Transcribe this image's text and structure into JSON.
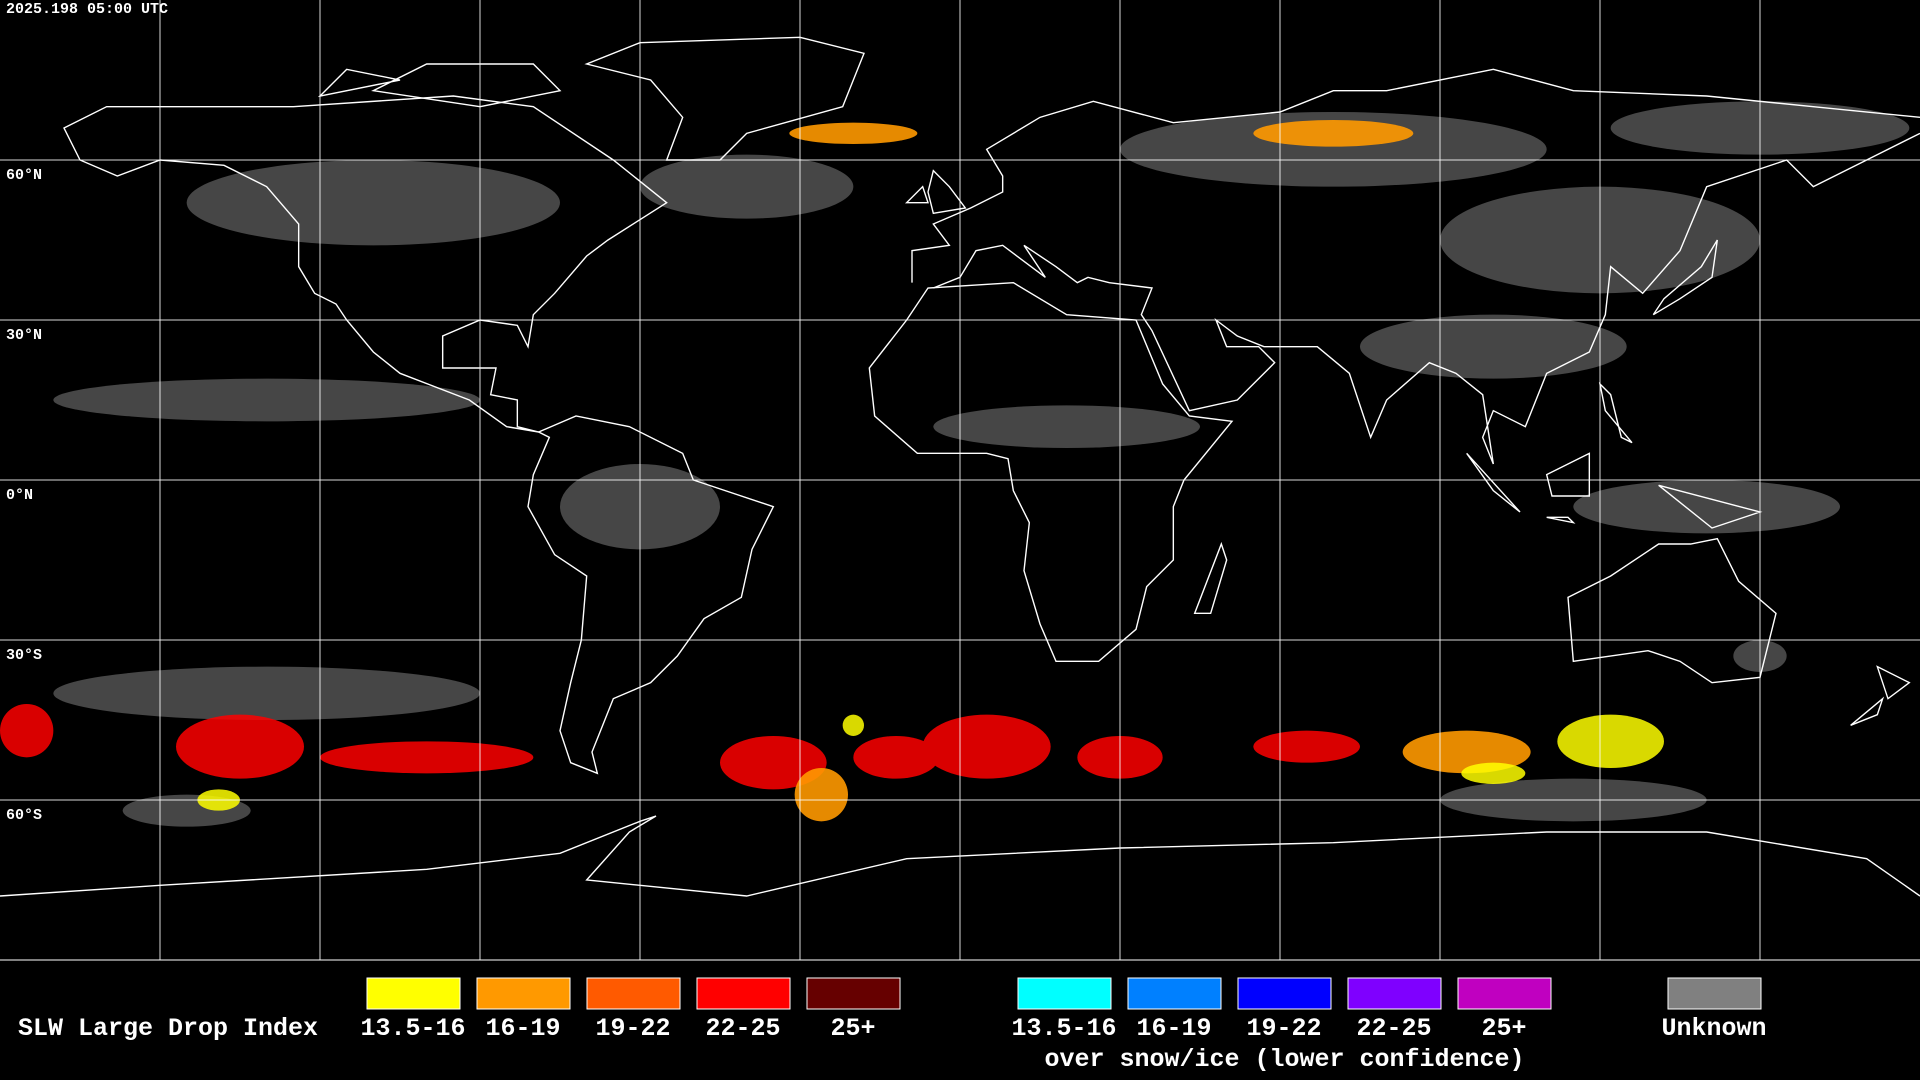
{
  "header": {
    "timestamp": "2025.198 05:00 UTC"
  },
  "map": {
    "lat_labels": [
      "60°N",
      "30°N",
      "0°N",
      "30°S",
      "60°S"
    ]
  },
  "legend": {
    "title": "SLW Large Drop Index",
    "groups": [
      {
        "items": [
          {
            "label": "13.5-16",
            "color": "#ffff00"
          },
          {
            "label": "16-19",
            "color": "#ff9900"
          },
          {
            "label": "19-22",
            "color": "#ff5a00"
          },
          {
            "label": "22-25",
            "color": "#ff0000"
          },
          {
            "label": "25+",
            "color": "#660000"
          }
        ]
      },
      {
        "items": [
          {
            "label": "13.5-16",
            "color": "#00ffff"
          },
          {
            "label": "16-19",
            "color": "#0080ff"
          },
          {
            "label": "19-22",
            "color": "#0000ff"
          },
          {
            "label": "22-25",
            "color": "#7f00ff"
          },
          {
            "label": "25+",
            "color": "#c000c0"
          }
        ],
        "note": "over snow/ice (lower confidence)"
      }
    ],
    "unknown": {
      "label": "Unknown",
      "color": "#808080"
    }
  }
}
